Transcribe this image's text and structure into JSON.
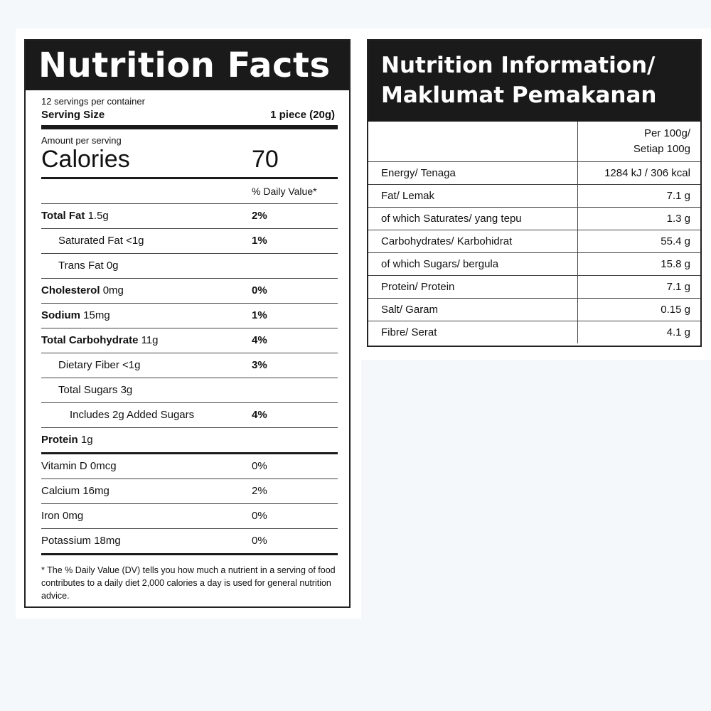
{
  "us_label": {
    "title": "Nutrition Facts",
    "servings_per_container": "12 servings per container",
    "serving_size_label": "Serving Size",
    "serving_size_value": "1 piece (20g)",
    "amount_per_serving": "Amount per serving",
    "calories_label": "Calories",
    "calories_value": "70",
    "daily_value_header": "% Daily Value*",
    "nutrients": [
      {
        "name": "Total Fat",
        "amount": "1.5g",
        "dv": "2%"
      },
      {
        "name": "Saturated Fat",
        "amount": "<1g",
        "dv": "1%"
      },
      {
        "name": "Trans Fat",
        "amount": "0g",
        "dv": ""
      },
      {
        "name": "Cholesterol",
        "amount": "0mg",
        "dv": "0%"
      },
      {
        "name": "Sodium",
        "amount": "15mg",
        "dv": "1%"
      },
      {
        "name": "Total Carbohydrate",
        "amount": "11g",
        "dv": "4%"
      },
      {
        "name": "Dietary Fiber",
        "amount": "<1g",
        "dv": "3%"
      },
      {
        "name": "Total Sugars",
        "amount": "3g",
        "dv": ""
      },
      {
        "name": "Includes 2g Added Sugars",
        "amount": "",
        "dv": "4%"
      },
      {
        "name": "Protein",
        "amount": "1g",
        "dv": ""
      }
    ],
    "vitamins": [
      {
        "name": "Vitamin D 0mcg",
        "dv": "0%"
      },
      {
        "name": "Calcium 16mg",
        "dv": "2%"
      },
      {
        "name": "Iron 0mg",
        "dv": "0%"
      },
      {
        "name": "Potassium 18mg",
        "dv": "0%"
      }
    ],
    "footnote": "* The % Daily Value (DV) tells you how much a nutrient in a serving of food contributes to a daily diet 2,000 calories a day is used for general nutrition advice."
  },
  "my_label": {
    "title_line1": "Nutrition Information/",
    "title_line2": "Maklumat Pemakanan",
    "column_header_line1": "Per 100g/",
    "column_header_line2": "Setiap 100g",
    "rows": [
      {
        "label": "Energy/ Tenaga",
        "value": "1284 kJ / 306 kcal"
      },
      {
        "label": "Fat/ Lemak",
        "value": "7.1 g"
      },
      {
        "label": "of which Saturates/ yang tepu",
        "value": "1.3 g"
      },
      {
        "label": "Carbohydrates/ Karbohidrat",
        "value": "55.4 g"
      },
      {
        "label": "of which Sugars/ bergula",
        "value": "15.8 g"
      },
      {
        "label": "Protein/ Protein",
        "value": "7.1 g"
      },
      {
        "label": "Salt/ Garam",
        "value": "0.15 g"
      },
      {
        "label": "Fibre/ Serat",
        "value": "4.1 g"
      }
    ]
  }
}
